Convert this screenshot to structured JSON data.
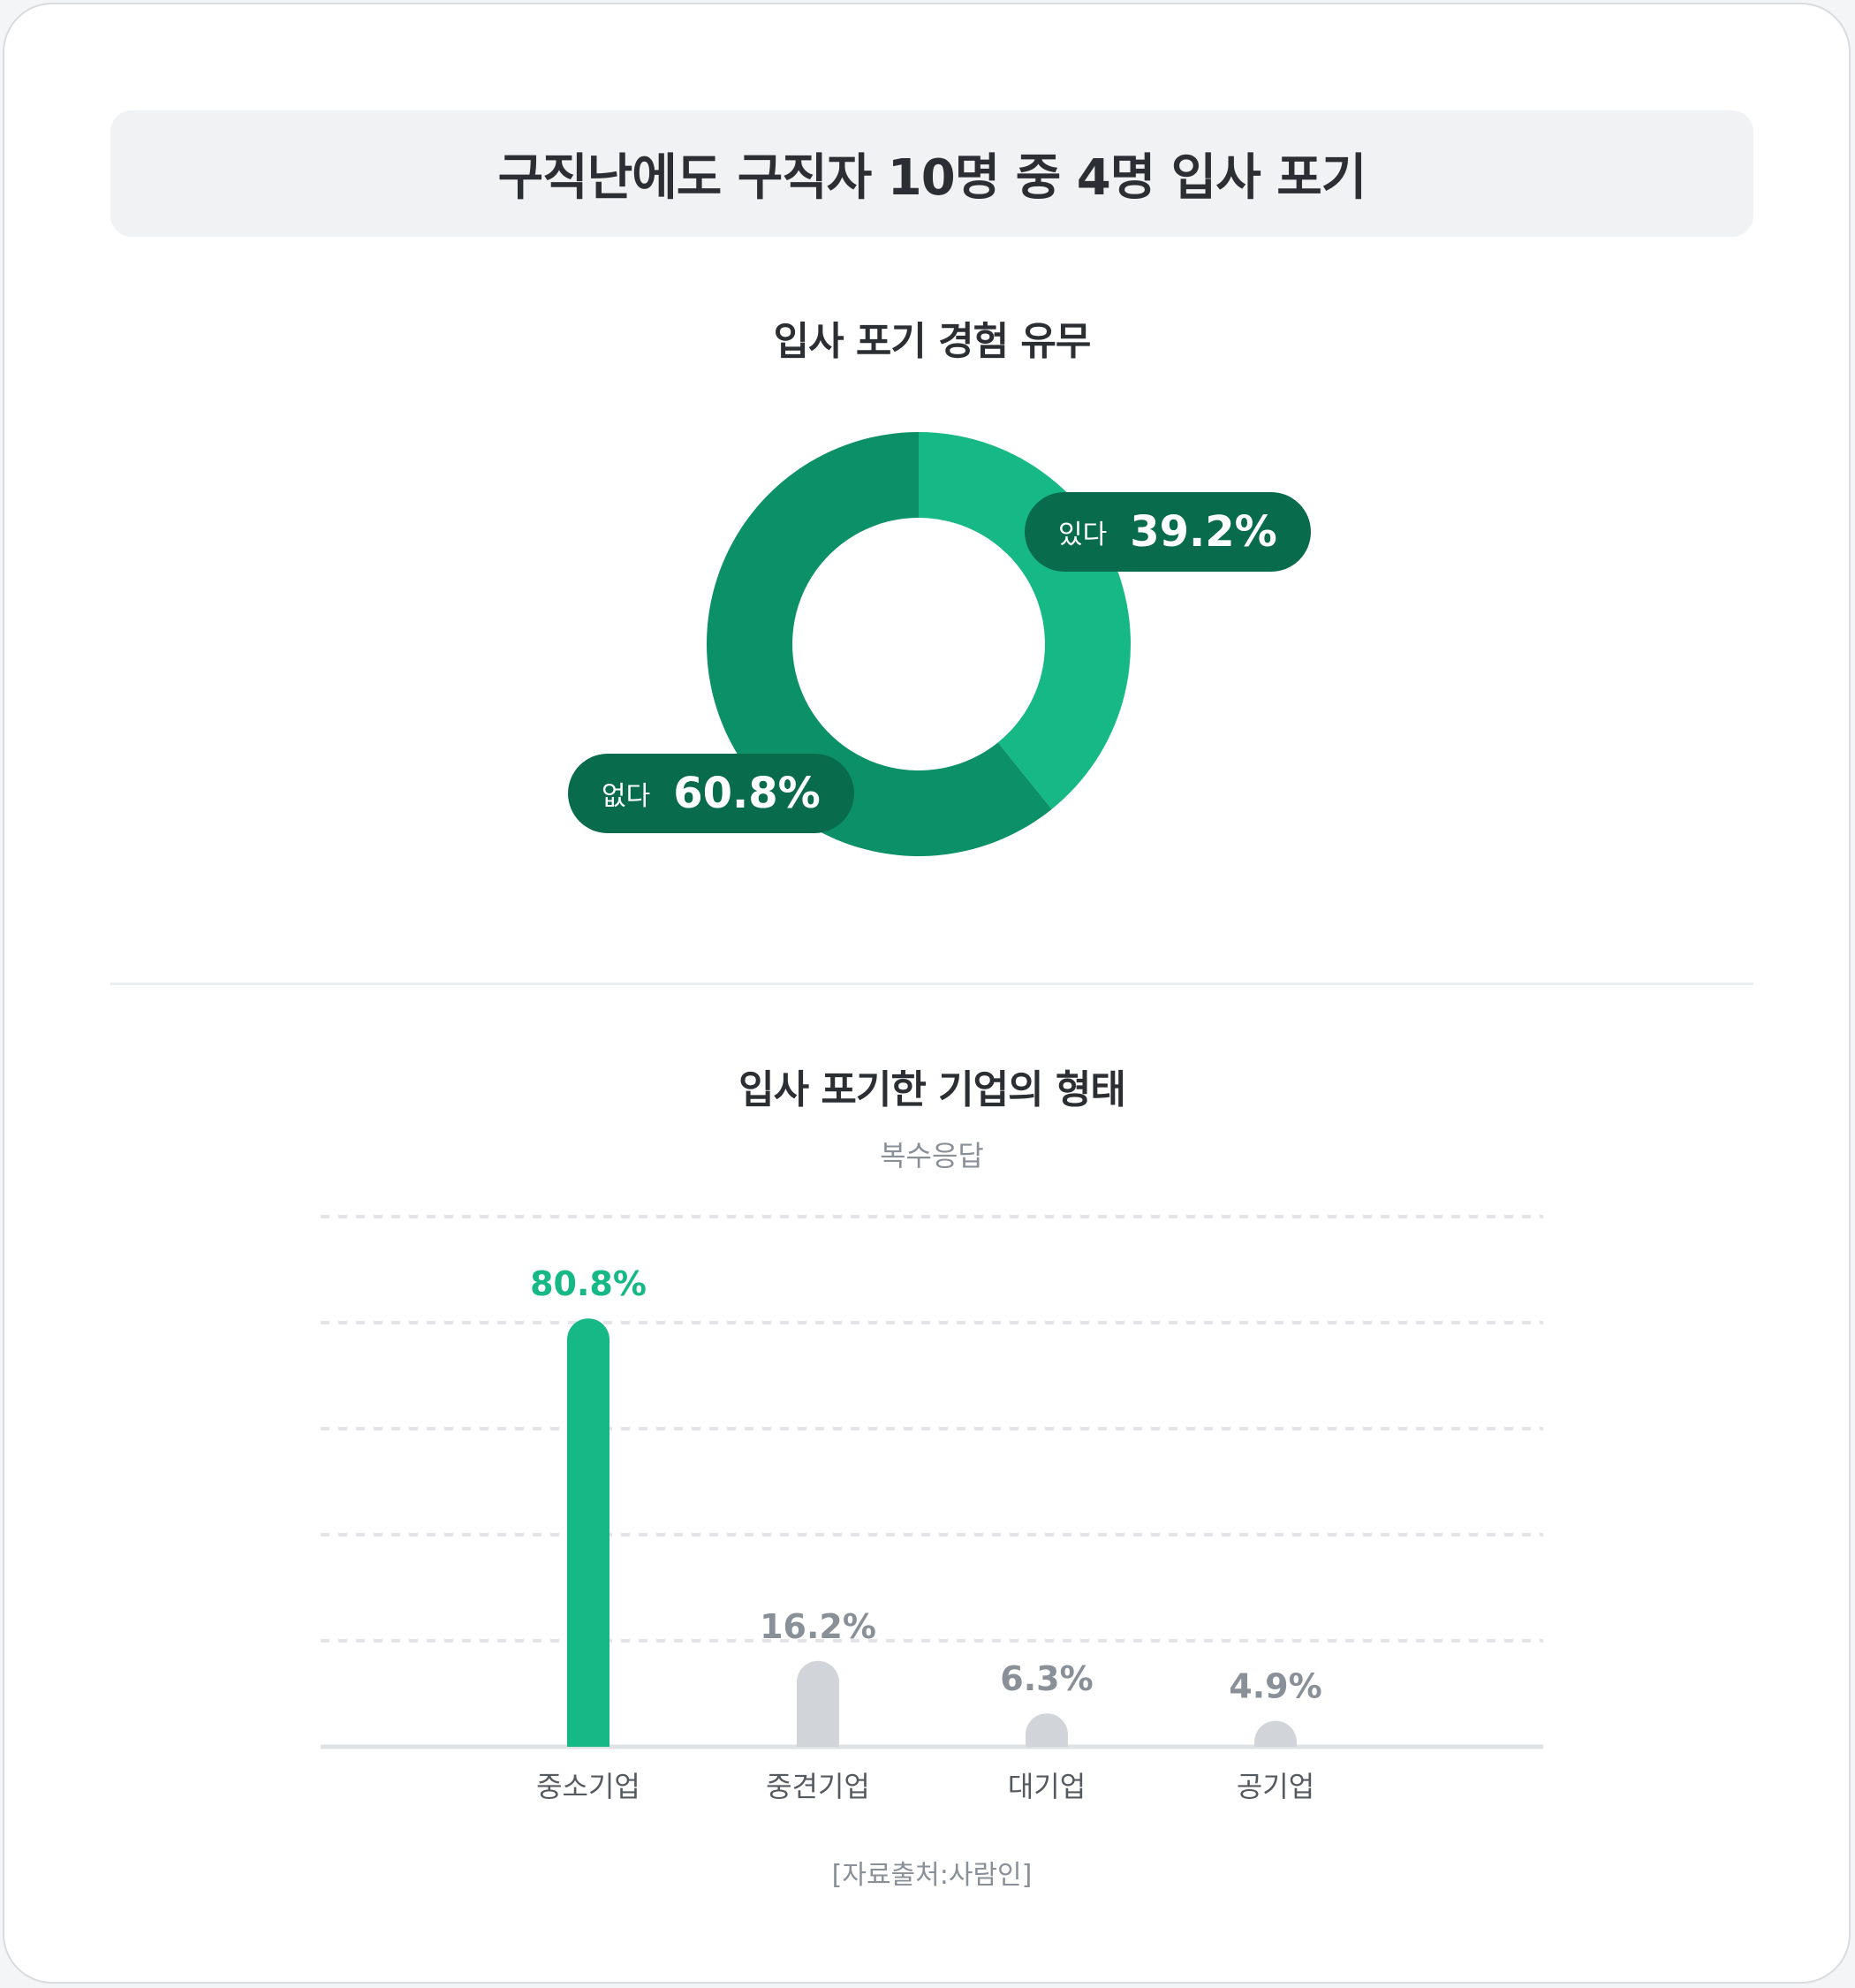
{
  "header": {
    "title": "구직난에도 구직자 10명 중 4명 입사 포기"
  },
  "donut": {
    "title": "입사 포기 경험 유무",
    "colors": {
      "yes": "#16b985",
      "no": "#0c9067",
      "pill": "#086b4b"
    }
  },
  "bars": {
    "title": "입사 포기한 기업의 형태",
    "subtitle": "복수응답",
    "highlight_color": "#16b985",
    "muted_color": "#d1d5da",
    "muted_label_color": "#8a9098"
  },
  "source": "[자료출처:사람인]",
  "chart_data": [
    {
      "type": "pie",
      "subtype": "donut",
      "title": "입사 포기 경험 유무",
      "categories": [
        "있다",
        "없다"
      ],
      "values": [
        39.2,
        60.8
      ],
      "labels": [
        "39.2%",
        "60.8%"
      ],
      "unit": "%"
    },
    {
      "type": "bar",
      "title": "입사 포기한 기업의 형태",
      "subtitle": "복수응답",
      "categories": [
        "중소기업",
        "중견기업",
        "대기업",
        "공기업"
      ],
      "values": [
        80.8,
        16.2,
        6.3,
        4.9
      ],
      "labels": [
        "80.8%",
        "16.2%",
        "6.3%",
        "4.9%"
      ],
      "unit": "%",
      "ylim": [
        0,
        100
      ],
      "grid": true,
      "highlight_index": 0
    }
  ]
}
